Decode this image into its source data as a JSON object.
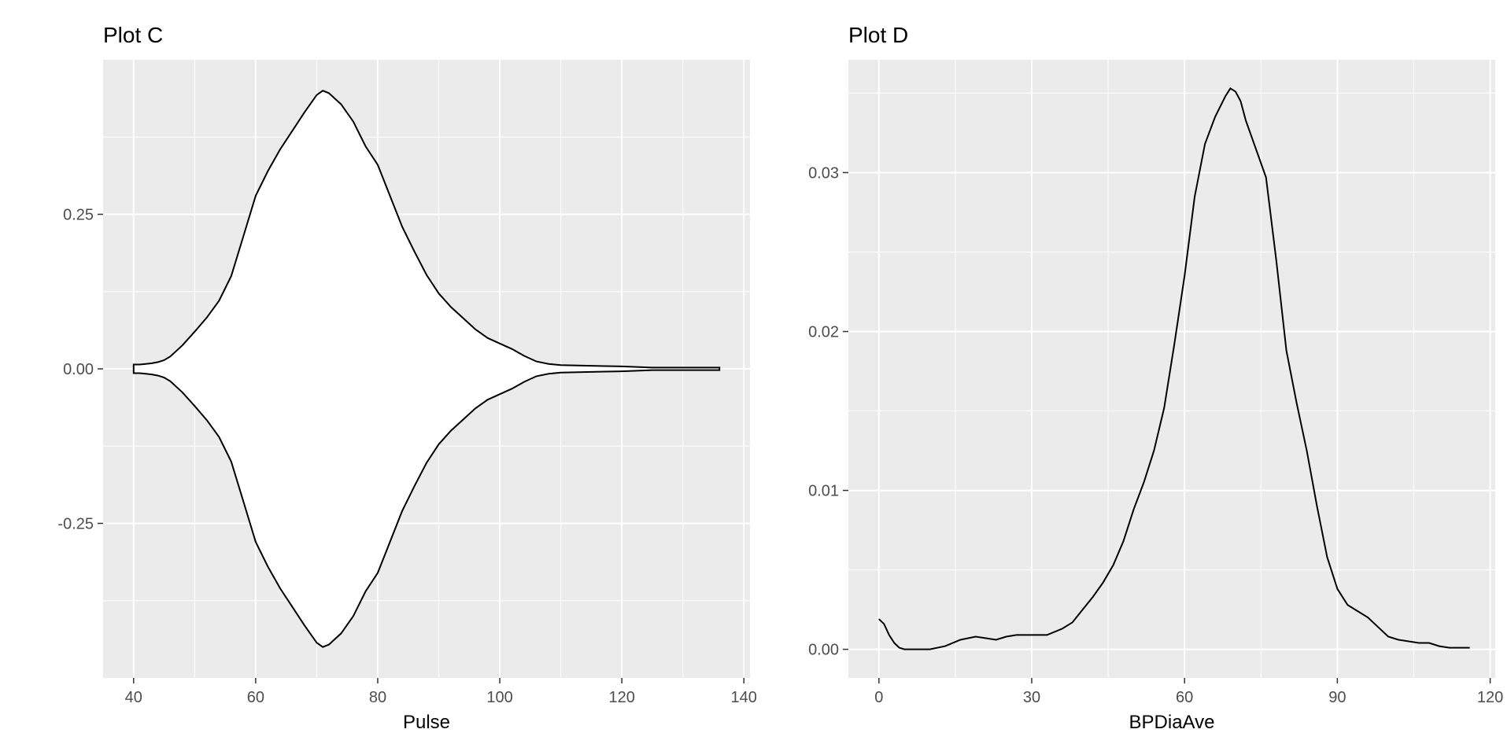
{
  "chart_data": [
    {
      "type": "violin",
      "title": "Plot C",
      "xlabel": "Pulse",
      "ylabel": "",
      "xlim": [
        35,
        141
      ],
      "ylim": [
        -0.5,
        0.5
      ],
      "xticks": [
        40,
        60,
        80,
        100,
        120,
        140
      ],
      "xtick_labels": [
        "40",
        "60",
        "80",
        "100",
        "120",
        "140"
      ],
      "yticks": [
        -0.25,
        0,
        0.25
      ],
      "ytick_labels": [
        "-0.25",
        "0.00",
        "0.25"
      ],
      "grid": true,
      "x": [
        40,
        41,
        42,
        43,
        44,
        45,
        46,
        48,
        50,
        52,
        54,
        56,
        58,
        60,
        62,
        64,
        66,
        68,
        70,
        71,
        72,
        74,
        76,
        78,
        80,
        82,
        84,
        86,
        88,
        90,
        92,
        94,
        96,
        98,
        100,
        102,
        104,
        106,
        108,
        110,
        115,
        120,
        125,
        130,
        136
      ],
      "half_width": [
        0.007,
        0.007,
        0.008,
        0.009,
        0.011,
        0.014,
        0.02,
        0.038,
        0.06,
        0.083,
        0.11,
        0.15,
        0.215,
        0.28,
        0.32,
        0.355,
        0.385,
        0.415,
        0.443,
        0.45,
        0.446,
        0.428,
        0.4,
        0.36,
        0.33,
        0.28,
        0.23,
        0.19,
        0.152,
        0.122,
        0.1,
        0.082,
        0.064,
        0.05,
        0.041,
        0.032,
        0.021,
        0.012,
        0.008,
        0.006,
        0.005,
        0.004,
        0.002,
        0.002,
        0.002
      ]
    },
    {
      "type": "density",
      "title": "Plot D",
      "xlabel": "BPDiaAve",
      "ylabel": "",
      "xlim": [
        -6,
        121
      ],
      "ylim": [
        -0.0018,
        0.0371
      ],
      "xticks": [
        0,
        30,
        60,
        90,
        120
      ],
      "xtick_labels": [
        "0",
        "30",
        "60",
        "90",
        "120"
      ],
      "yticks": [
        0,
        0.01,
        0.02,
        0.03
      ],
      "ytick_labels": [
        "0.00",
        "0.01",
        "0.02",
        "0.03"
      ],
      "grid": true,
      "x": [
        0,
        1,
        2,
        3,
        4,
        5,
        7,
        10,
        13,
        16,
        19,
        21,
        23,
        25,
        27,
        30,
        33,
        36,
        38,
        40,
        42,
        44,
        46,
        48,
        50,
        52,
        54,
        56,
        58,
        60,
        62,
        64,
        66,
        68,
        69,
        70,
        71,
        72,
        74,
        76,
        78,
        80,
        82,
        84,
        86,
        88,
        90,
        92,
        94,
        96,
        98,
        100,
        102,
        104,
        106,
        108,
        110,
        112,
        114,
        116
      ],
      "y": [
        0.0019,
        0.0016,
        0.0009,
        0.0004,
        0.0001,
        0.0,
        0.0,
        0.0,
        0.0002,
        0.0006,
        0.0008,
        0.0007,
        0.0006,
        0.0008,
        0.0009,
        0.0009,
        0.0009,
        0.0013,
        0.0017,
        0.0025,
        0.0033,
        0.0042,
        0.0053,
        0.0068,
        0.0088,
        0.0105,
        0.0125,
        0.0152,
        0.0192,
        0.0235,
        0.0285,
        0.0318,
        0.0335,
        0.0348,
        0.0353,
        0.0351,
        0.0345,
        0.0333,
        0.0315,
        0.0297,
        0.0245,
        0.0188,
        0.0155,
        0.0125,
        0.009,
        0.0058,
        0.0038,
        0.0028,
        0.0024,
        0.002,
        0.0014,
        0.0008,
        0.0006,
        0.0005,
        0.0004,
        0.0004,
        0.0002,
        0.0001,
        0.0001,
        0.0001
      ]
    }
  ]
}
